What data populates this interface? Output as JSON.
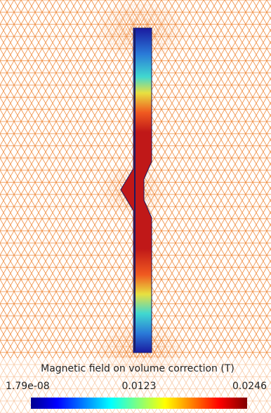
{
  "colorbar": {
    "title": "Magnetic field on volume correction (T)",
    "labels": [
      "1.79e-08",
      "0.0123",
      "0.0246"
    ]
  }
}
